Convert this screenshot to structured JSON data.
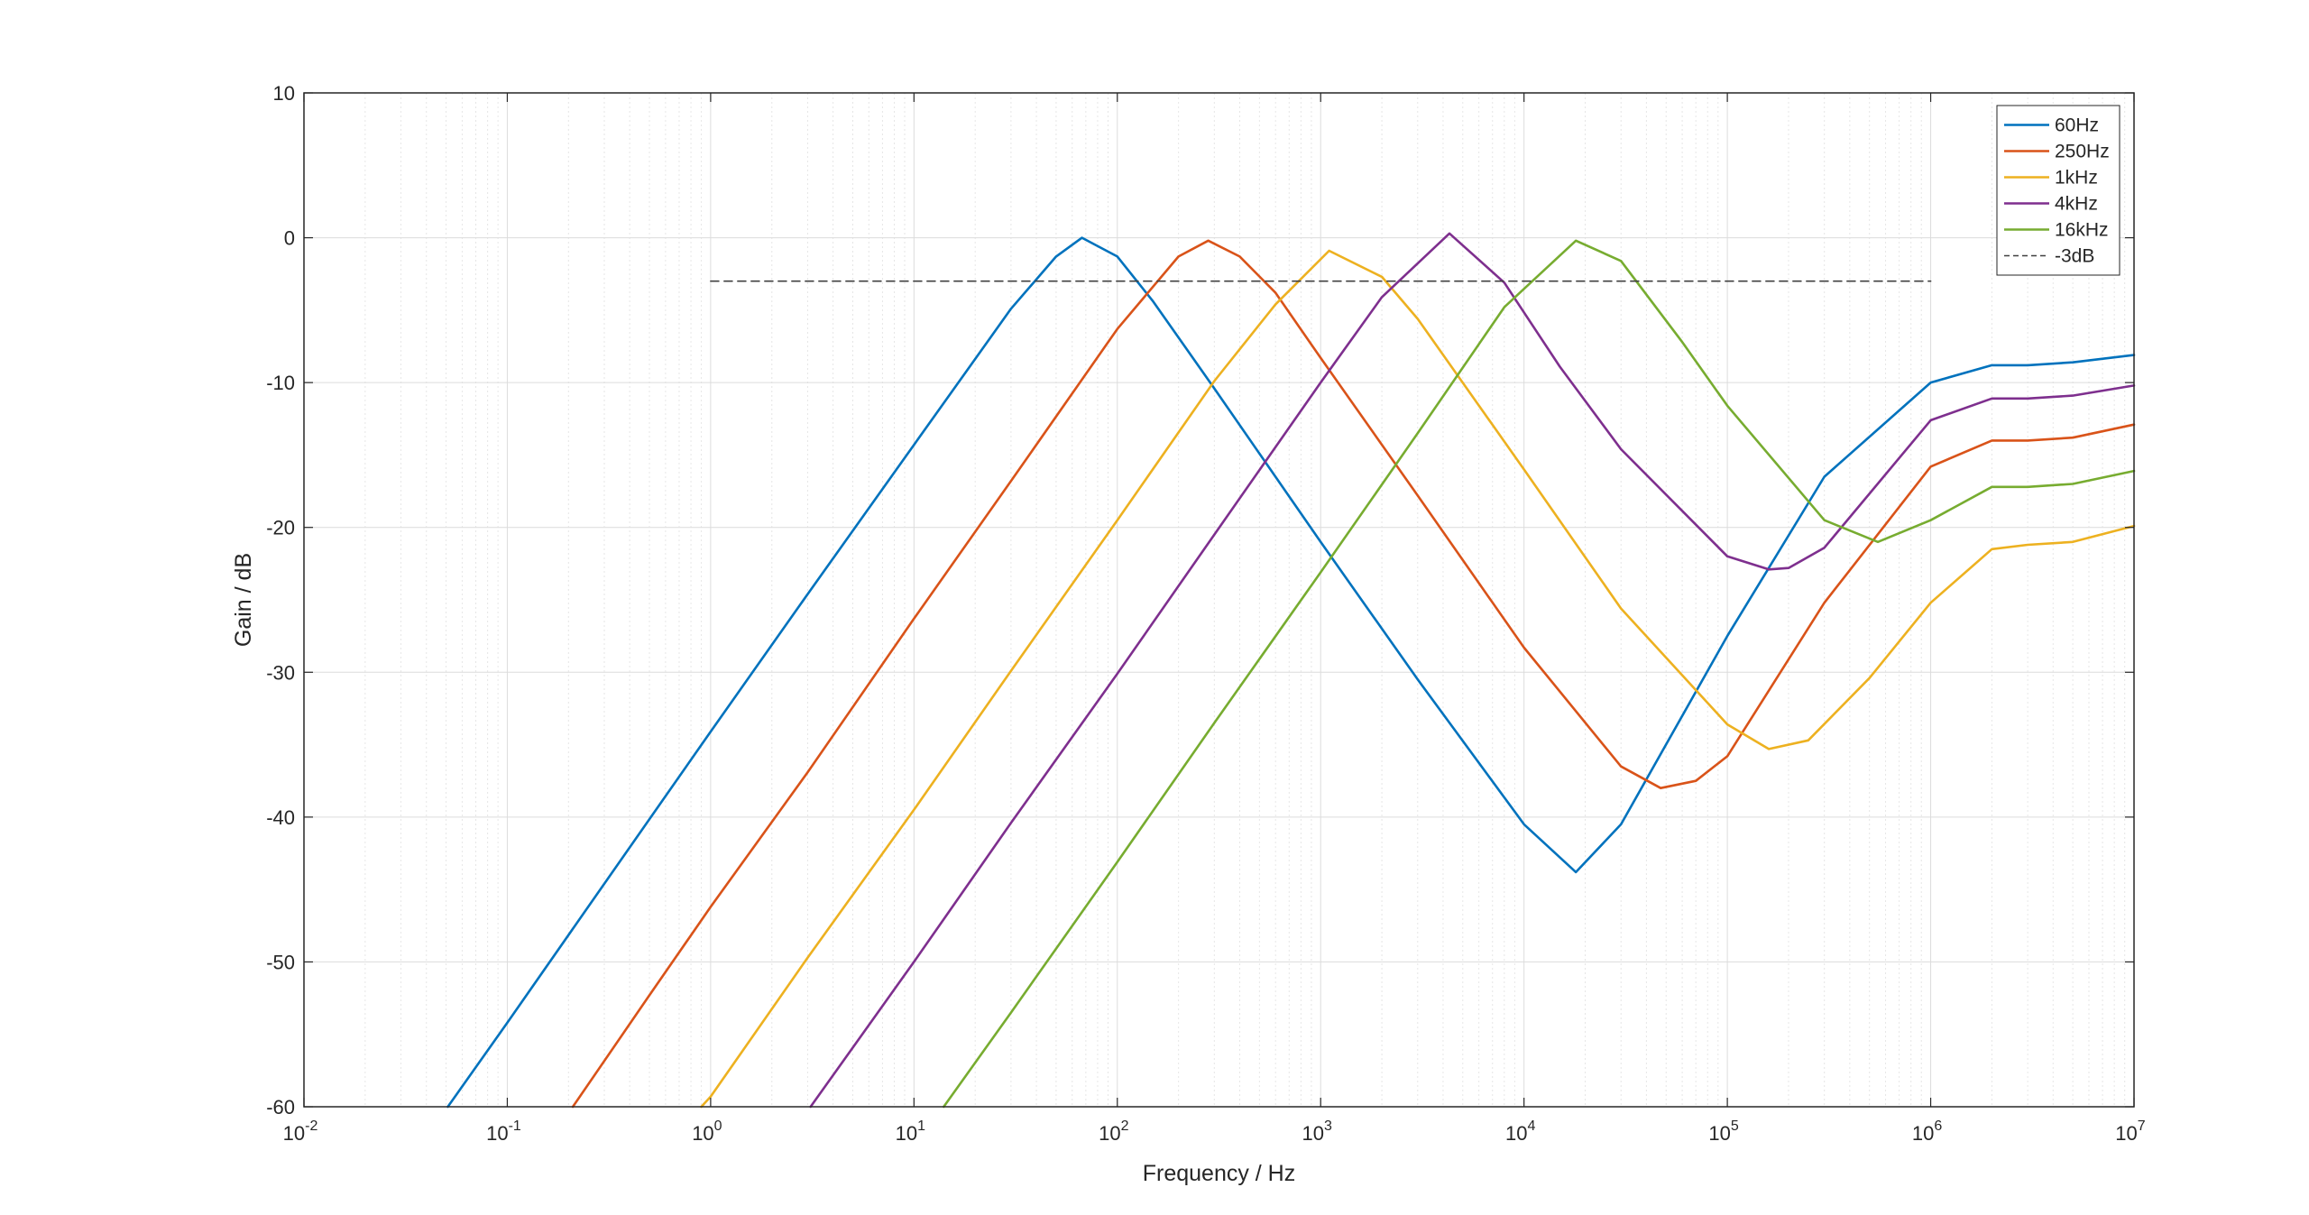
{
  "chart_data": {
    "type": "line",
    "title": "",
    "xlabel": "Frequency / Hz",
    "ylabel": "Gain / dB",
    "xscale": "log",
    "xlim": [
      0.01,
      10000000
    ],
    "ylim": [
      -60,
      10
    ],
    "grid": true,
    "minor_grid": true,
    "legend_position": "top-right",
    "x_ticks": [
      {
        "exp": "-2",
        "value": 0.01
      },
      {
        "exp": "-1",
        "value": 0.1
      },
      {
        "exp": "0",
        "value": 1
      },
      {
        "exp": "1",
        "value": 10
      },
      {
        "exp": "2",
        "value": 100
      },
      {
        "exp": "3",
        "value": 1000
      },
      {
        "exp": "4",
        "value": 10000
      },
      {
        "exp": "5",
        "value": 100000
      },
      {
        "exp": "6",
        "value": 1000000
      },
      {
        "exp": "7",
        "value": 10000000
      }
    ],
    "x_tick_base": "10",
    "y_ticks": [
      "10",
      "0",
      "-10",
      "-20",
      "-30",
      "-40",
      "-50",
      "-60"
    ],
    "series": [
      {
        "name": "60Hz",
        "color": "#0072BD",
        "style": "solid",
        "x": [
          0.051,
          0.1,
          0.3,
          1,
          3,
          10,
          30,
          50,
          67,
          100,
          150,
          300,
          1000,
          3000,
          10000,
          18000,
          30000,
          100000,
          300000,
          1000000,
          2000000,
          3000000,
          5000000,
          10000000
        ],
        "y": [
          -60,
          -54.2,
          -44.6,
          -34.1,
          -24.6,
          -14.3,
          -4.9,
          -1.3,
          0,
          -1.3,
          -4.4,
          -10.4,
          -21,
          -30.5,
          -40.5,
          -43.8,
          -40.5,
          -27.5,
          -16.5,
          -10,
          -8.8,
          -8.8,
          -8.6,
          -8.1
        ]
      },
      {
        "name": "250Hz",
        "color": "#D95319",
        "style": "solid",
        "x": [
          0.21,
          0.5,
          1,
          3,
          10,
          30,
          100,
          200,
          280,
          400,
          600,
          1000,
          3000,
          10000,
          30000,
          47000,
          70000,
          100000,
          300000,
          1000000,
          2000000,
          3000000,
          5000000,
          10000000
        ],
        "y": [
          -60,
          -52.3,
          -46.2,
          -36.9,
          -26.3,
          -16.8,
          -6.3,
          -1.3,
          -0.2,
          -1.3,
          -3.8,
          -8.3,
          -17.8,
          -28.3,
          -36.5,
          -38,
          -37.5,
          -35.8,
          -25.2,
          -15.8,
          -14,
          -14,
          -13.8,
          -12.9
        ]
      },
      {
        "name": "1kHz",
        "color": "#EDB120",
        "style": "solid",
        "x": [
          0.9,
          1,
          3,
          10,
          30,
          100,
          300,
          600,
          1100,
          2000,
          3000,
          10000,
          30000,
          100000,
          160000,
          250000,
          500000,
          1000000,
          2000000,
          3000000,
          5000000,
          10000000
        ],
        "y": [
          -60,
          -59.3,
          -49.7,
          -39.5,
          -29.9,
          -19.5,
          -9.9,
          -4.6,
          -0.9,
          -2.7,
          -5.6,
          -16,
          -25.6,
          -33.6,
          -35.3,
          -34.7,
          -30.4,
          -25.2,
          -21.5,
          -21.2,
          -21,
          -19.9
        ]
      },
      {
        "name": "4kHz",
        "color": "#7E2F8E",
        "style": "solid",
        "x": [
          3.1,
          10,
          30,
          100,
          300,
          1000,
          2000,
          4300,
          8000,
          15000,
          30000,
          100000,
          160000,
          200000,
          300000,
          1000000,
          2000000,
          3000000,
          5000000,
          10000000
        ],
        "y": [
          -60,
          -50,
          -40.4,
          -30.1,
          -20.5,
          -10,
          -4.1,
          0.3,
          -3.1,
          -8.9,
          -14.6,
          -22,
          -22.9,
          -22.8,
          -21.4,
          -12.6,
          -11.1,
          -11.1,
          -10.9,
          -10.2
        ]
      },
      {
        "name": "16kHz",
        "color": "#77AC30",
        "style": "solid",
        "x": [
          14,
          30,
          100,
          300,
          1000,
          3000,
          8000,
          18000,
          30000,
          60000,
          100000,
          300000,
          550000,
          1000000,
          2000000,
          3000000,
          5000000,
          10000000
        ],
        "y": [
          -60,
          -53.5,
          -43.1,
          -33.5,
          -23.1,
          -13.5,
          -4.8,
          -0.2,
          -1.6,
          -7.2,
          -11.6,
          -19.5,
          -21,
          -19.5,
          -17.2,
          -17.2,
          -17,
          -16.1
        ]
      },
      {
        "name": "-3dB",
        "color": "#404040",
        "style": "dashed",
        "x": [
          1,
          1000000
        ],
        "y": [
          -3,
          -3
        ]
      }
    ]
  }
}
